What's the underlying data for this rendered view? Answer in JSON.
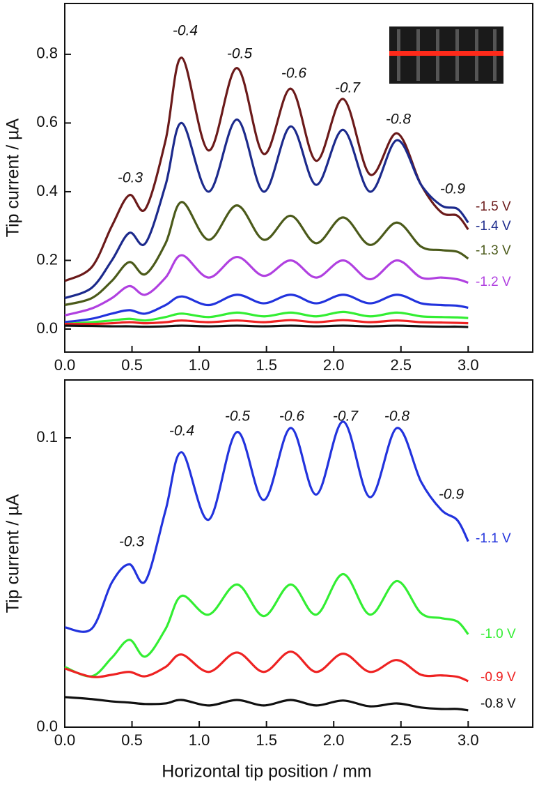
{
  "chart_data": [
    {
      "type": "line",
      "ylabel": "Tip current / µA",
      "xlim": [
        0,
        3.48
      ],
      "ylim": [
        -0.067,
        0.948
      ],
      "xticks": [
        {
          "value": 0,
          "label": "0.0"
        },
        0.5,
        {
          "value": 1,
          "label": "1.0"
        },
        1.5,
        {
          "value": 2,
          "label": "2.0"
        },
        2.5,
        {
          "value": 3,
          "label": "3.0"
        }
      ],
      "yticks": [
        {
          "value": 0,
          "label": "0.0"
        },
        0.2,
        0.4,
        0.6,
        0.8
      ],
      "x": [
        0,
        0.2,
        0.35,
        0.48,
        0.6,
        0.75,
        0.87,
        1.07,
        1.28,
        1.48,
        1.68,
        1.87,
        2.07,
        2.27,
        2.47,
        2.65,
        2.8,
        2.92,
        3.0
      ],
      "annotations": [
        "-0.3",
        "-0.4",
        "-0.5",
        "-0.6",
        "-0.7",
        "-0.8",
        "-0.9"
      ],
      "series": [
        {
          "name": "-1.5 V",
          "color": "#6b1a1a",
          "values": [
            0.14,
            0.18,
            0.3,
            0.39,
            0.35,
            0.55,
            0.79,
            0.52,
            0.76,
            0.51,
            0.7,
            0.49,
            0.67,
            0.45,
            0.57,
            0.42,
            0.34,
            0.33,
            0.29
          ]
        },
        {
          "name": "-1.4 V",
          "color": "#1c2a8c",
          "values": [
            0.09,
            0.12,
            0.2,
            0.28,
            0.25,
            0.42,
            0.6,
            0.4,
            0.61,
            0.4,
            0.59,
            0.42,
            0.58,
            0.4,
            0.55,
            0.42,
            0.36,
            0.35,
            0.31
          ]
        },
        {
          "name": "-1.3 V",
          "color": "#4b5a1a",
          "values": [
            0.07,
            0.09,
            0.14,
            0.195,
            0.16,
            0.25,
            0.37,
            0.26,
            0.36,
            0.26,
            0.33,
            0.25,
            0.325,
            0.245,
            0.31,
            0.24,
            0.23,
            0.225,
            0.205
          ]
        },
        {
          "name": "-1.2 V",
          "color": "#b040e0",
          "values": [
            0.04,
            0.06,
            0.09,
            0.125,
            0.1,
            0.15,
            0.215,
            0.15,
            0.21,
            0.155,
            0.2,
            0.15,
            0.2,
            0.145,
            0.2,
            0.15,
            0.15,
            0.145,
            0.135
          ]
        },
        {
          "color": "#2233dd",
          "values": [
            0.02,
            0.03,
            0.045,
            0.055,
            0.045,
            0.07,
            0.095,
            0.07,
            0.1,
            0.075,
            0.1,
            0.075,
            0.1,
            0.075,
            0.1,
            0.075,
            0.07,
            0.068,
            0.062
          ]
        },
        {
          "color": "#33ee33",
          "values": [
            0.015,
            0.02,
            0.025,
            0.03,
            0.025,
            0.035,
            0.045,
            0.035,
            0.048,
            0.037,
            0.048,
            0.037,
            0.05,
            0.037,
            0.048,
            0.037,
            0.035,
            0.034,
            0.032
          ]
        },
        {
          "color": "#ee2222",
          "values": [
            0.015,
            0.015,
            0.017,
            0.02,
            0.017,
            0.02,
            0.025,
            0.02,
            0.025,
            0.02,
            0.026,
            0.02,
            0.026,
            0.02,
            0.025,
            0.02,
            0.019,
            0.018,
            0.017
          ]
        },
        {
          "color": "#111111",
          "values": [
            0.01,
            0.009,
            0.008,
            0.008,
            0.007,
            0.008,
            0.01,
            0.008,
            0.01,
            0.008,
            0.01,
            0.008,
            0.01,
            0.008,
            0.01,
            0.008,
            0.007,
            0.007,
            0.006
          ]
        }
      ]
    },
    {
      "type": "line",
      "xlabel": "Horizontal tip position / mm",
      "ylabel": "Tip current / µA",
      "xlim": [
        0,
        3.48
      ],
      "ylim": [
        0,
        0.12
      ],
      "xticks": [
        {
          "value": 0,
          "label": "0.0"
        },
        0.5,
        {
          "value": 1,
          "label": "1.0"
        },
        1.5,
        {
          "value": 2,
          "label": "2.0"
        },
        2.5,
        {
          "value": 3,
          "label": "3.0"
        }
      ],
      "yticks": [
        {
          "value": 0,
          "label": "0.0"
        },
        0.1
      ],
      "x": [
        0,
        0.2,
        0.35,
        0.48,
        0.6,
        0.75,
        0.87,
        1.07,
        1.28,
        1.48,
        1.68,
        1.87,
        2.07,
        2.27,
        2.47,
        2.65,
        2.8,
        2.92,
        3.0
      ],
      "annotations": [
        "-0.3",
        "-0.4",
        "-0.5",
        "-0.6",
        "-0.7",
        "-0.8",
        "-0.9"
      ],
      "series": [
        {
          "name": "-1.1 V",
          "color": "#2233dd",
          "values": [
            0.0345,
            0.034,
            0.05,
            0.0563,
            0.0505,
            0.075,
            0.095,
            0.0717,
            0.102,
            0.0785,
            0.1034,
            0.0804,
            0.1056,
            0.0795,
            0.1034,
            0.0848,
            0.0751,
            0.0715,
            0.0642
          ]
        },
        {
          "name": "-1.0 V",
          "color": "#33ee33",
          "values": [
            0.0208,
            0.0176,
            0.024,
            0.0302,
            0.0244,
            0.034,
            0.0454,
            0.0389,
            0.0493,
            0.0384,
            0.0493,
            0.0389,
            0.0529,
            0.0389,
            0.0505,
            0.0394,
            0.0377,
            0.0365,
            0.0321
          ]
        },
        {
          "name": "-0.9 V",
          "color": "#ee2222",
          "values": [
            0.0203,
            0.0174,
            0.0181,
            0.0191,
            0.0176,
            0.0208,
            0.0251,
            0.0191,
            0.0258,
            0.0191,
            0.0261,
            0.0191,
            0.0254,
            0.0191,
            0.0232,
            0.0181,
            0.0179,
            0.0174,
            0.0159
          ]
        },
        {
          "name": "-0.8 V",
          "color": "#111111",
          "values": [
            0.0104,
            0.0097,
            0.0089,
            0.0085,
            0.008,
            0.0082,
            0.0094,
            0.0075,
            0.0094,
            0.0075,
            0.0094,
            0.0075,
            0.0092,
            0.0072,
            0.0082,
            0.0068,
            0.0063,
            0.0063,
            0.0058
          ]
        }
      ]
    }
  ]
}
